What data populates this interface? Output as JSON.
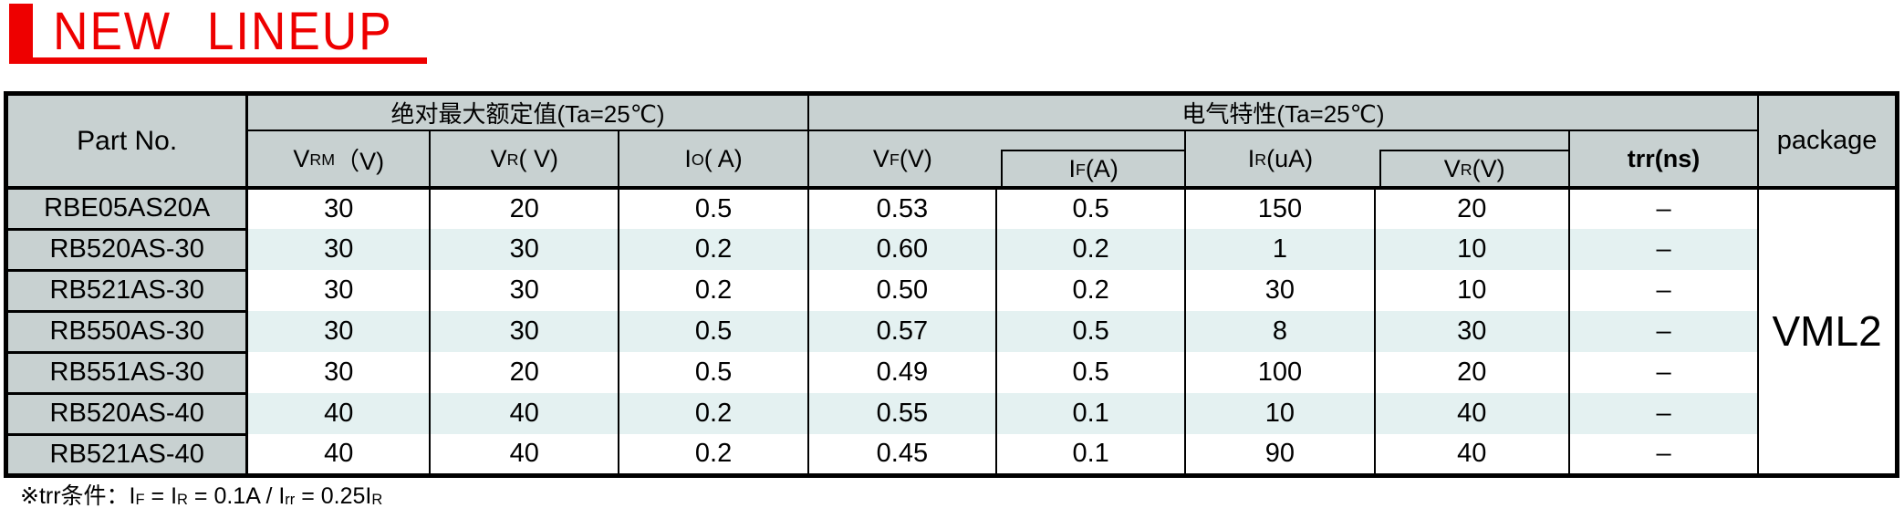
{
  "colors": {
    "accent_red": "#ee0000",
    "header_bg": "#c8d1d1",
    "row_alt_bg": "#e4f1f1",
    "border": "#000000"
  },
  "title": {
    "text": "NEW LINEUP"
  },
  "table": {
    "corner_header": "Part No.",
    "group_headers": [
      {
        "label": "绝对最大额定值(Ta=25℃)"
      },
      {
        "label": "电气特性(Ta=25℃)"
      }
    ],
    "package_header": "package",
    "columns": [
      {
        "main": "V",
        "sub": "RM",
        "rest": "（V)",
        "boxed": false,
        "bold": false
      },
      {
        "main": "V",
        "sub": "R",
        "rest": "( V)",
        "boxed": false,
        "bold": false
      },
      {
        "main": "I",
        "sub": "O",
        "rest": "( A)",
        "boxed": false,
        "bold": false
      },
      {
        "main": "V",
        "sub": "F",
        "rest": " (V)",
        "boxed": false,
        "bold": false
      },
      {
        "main": "I",
        "sub": "F",
        "rest": " (A)",
        "boxed": true,
        "bold": false
      },
      {
        "main": "I",
        "sub": "R",
        "rest": " (uA)",
        "boxed": false,
        "bold": false
      },
      {
        "main": "V",
        "sub": "R",
        "rest": " (V)",
        "boxed": true,
        "bold": false
      },
      {
        "main": "trr",
        "sub": "",
        "rest": " (ns)",
        "boxed": false,
        "bold": true
      }
    ],
    "rows": [
      {
        "part": "RBE05AS20A",
        "values": [
          "30",
          "20",
          "0.5",
          "0.53",
          "0.5",
          "150",
          "20",
          "–"
        ],
        "tinted": false
      },
      {
        "part": "RB520AS-30",
        "values": [
          "30",
          "30",
          "0.2",
          "0.60",
          "0.2",
          "1",
          "10",
          "–"
        ],
        "tinted": true
      },
      {
        "part": "RB521AS-30",
        "values": [
          "30",
          "30",
          "0.2",
          "0.50",
          "0.2",
          "30",
          "10",
          "–"
        ],
        "tinted": false
      },
      {
        "part": "RB550AS-30",
        "values": [
          "30",
          "30",
          "0.5",
          "0.57",
          "0.5",
          "8",
          "30",
          "–"
        ],
        "tinted": true
      },
      {
        "part": "RB551AS-30",
        "values": [
          "30",
          "20",
          "0.5",
          "0.49",
          "0.5",
          "100",
          "20",
          "–"
        ],
        "tinted": false
      },
      {
        "part": "RB520AS-40",
        "values": [
          "40",
          "40",
          "0.2",
          "0.55",
          "0.1",
          "10",
          "40",
          "–"
        ],
        "tinted": true
      },
      {
        "part": "RB521AS-40",
        "values": [
          "40",
          "40",
          "0.2",
          "0.45",
          "0.1",
          "90",
          "40",
          "–"
        ],
        "tinted": false
      }
    ],
    "package_value": "VML2"
  },
  "footnote": {
    "segments": [
      {
        "text": "※trr条件：I"
      },
      {
        "text": "F",
        "sub": true
      },
      {
        "text": " = I"
      },
      {
        "text": "R",
        "sub": true
      },
      {
        "text": " = 0.1A / I"
      },
      {
        "text": "rr",
        "sub": true
      },
      {
        "text": " = 0.25I"
      },
      {
        "text": "R",
        "sub": true
      }
    ]
  }
}
